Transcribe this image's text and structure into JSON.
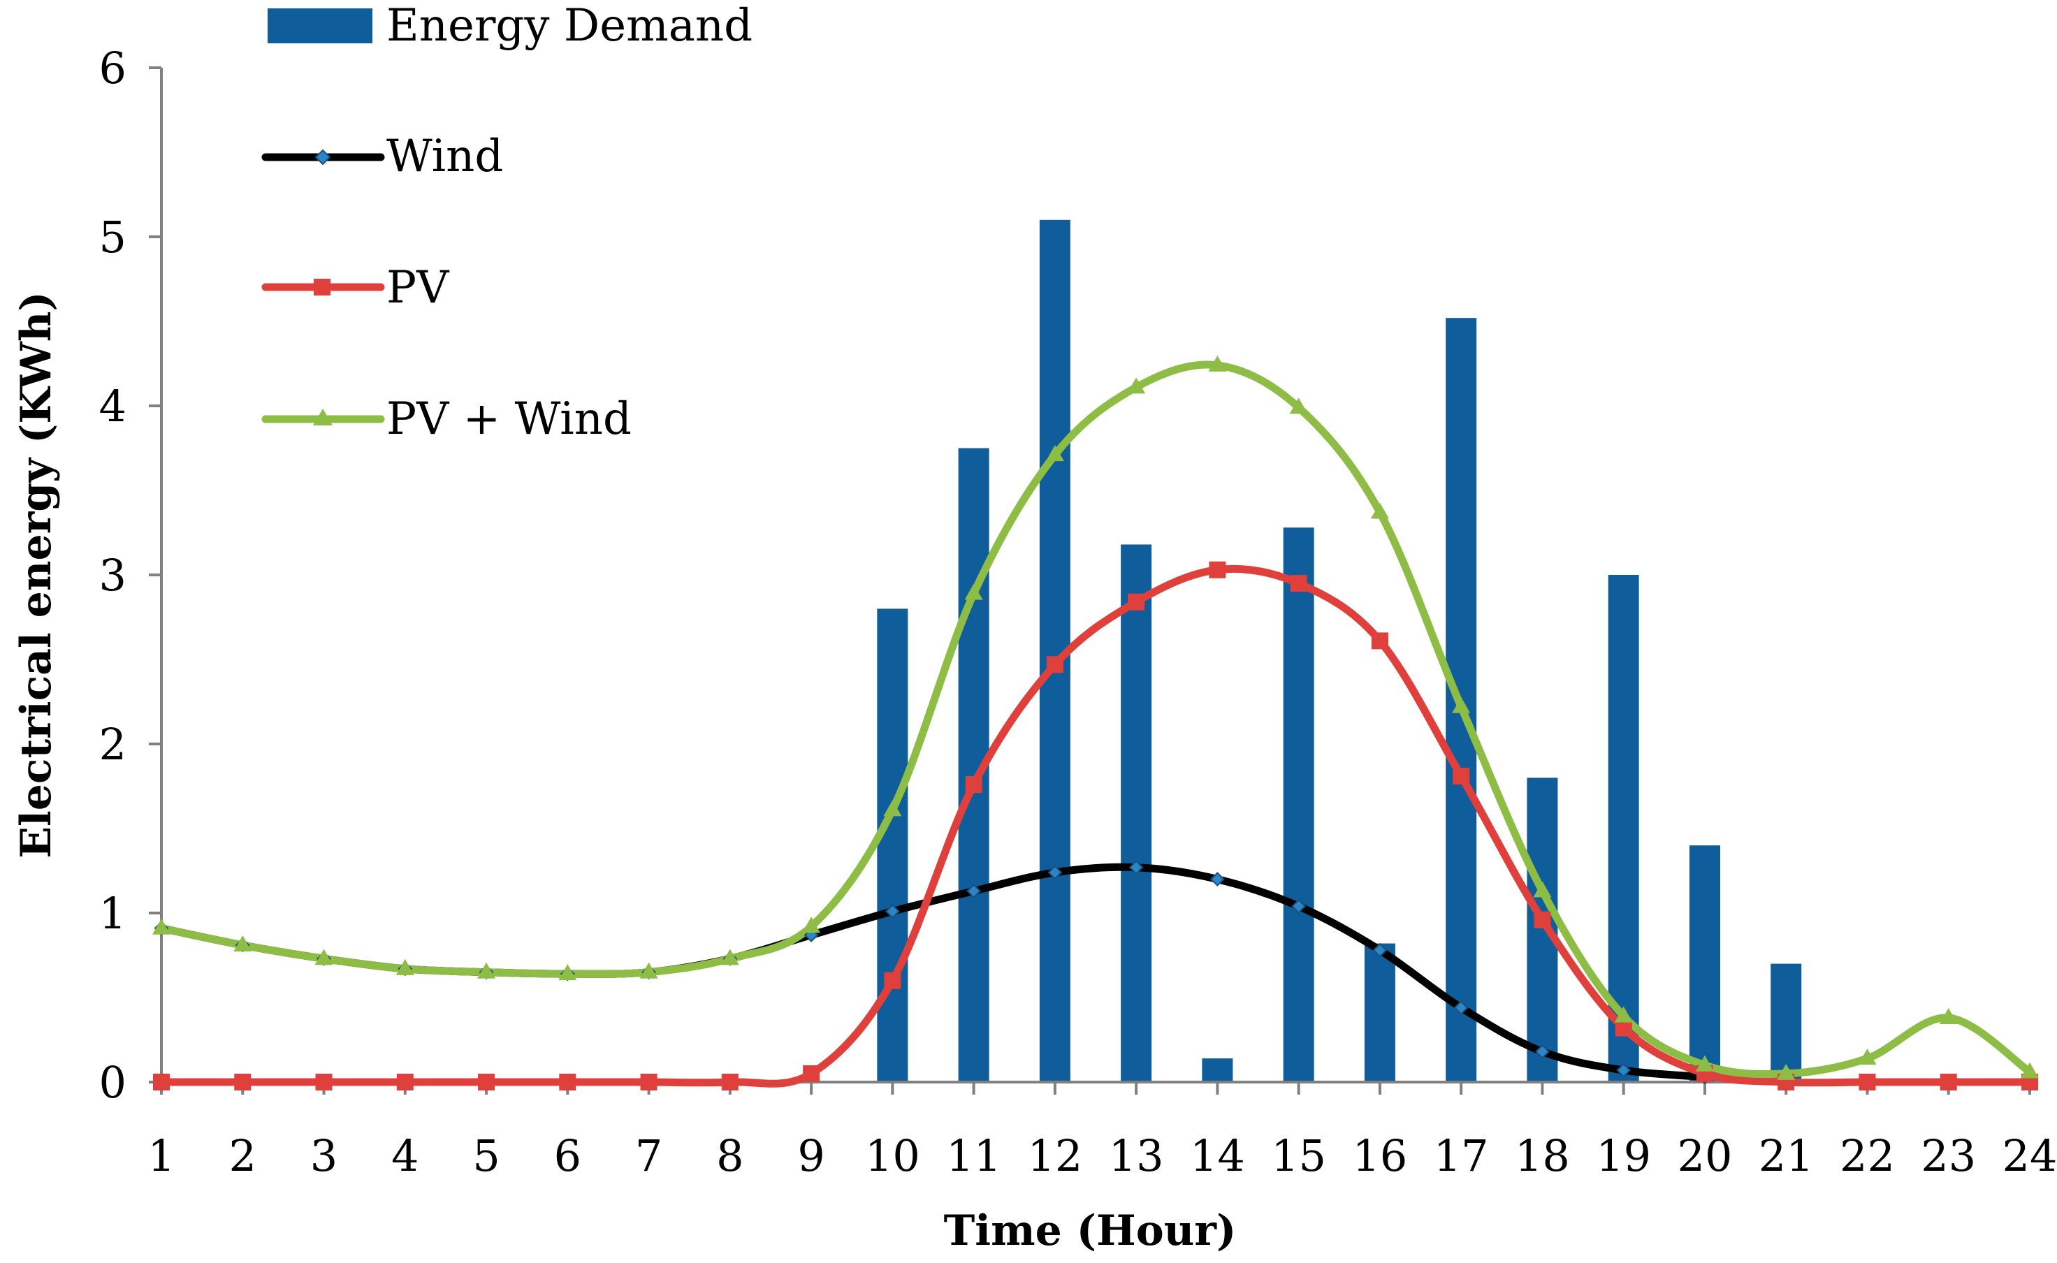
{
  "chart_data": {
    "type": "bar",
    "title": "",
    "xlabel": "Time (Hour)",
    "ylabel": "Electrical energy (KWh)",
    "ylim": [
      0,
      6
    ],
    "yticks": [
      "0",
      "1",
      "2",
      "3",
      "4",
      "5",
      "6"
    ],
    "categories": [
      "1",
      "2",
      "3",
      "4",
      "5",
      "6",
      "7",
      "8",
      "9",
      "10",
      "11",
      "12",
      "13",
      "14",
      "15",
      "16",
      "17",
      "18",
      "19",
      "20",
      "21",
      "22",
      "23",
      "24"
    ],
    "grid": false,
    "legend_position": "top-left",
    "series": [
      {
        "name": "Energy Demand",
        "type": "bar",
        "color": "#0f5d9a",
        "values": [
          0,
          0,
          0,
          0,
          0,
          0,
          0,
          0,
          0,
          2.8,
          3.75,
          5.1,
          3.18,
          0.14,
          3.28,
          0.82,
          4.52,
          1.8,
          3.0,
          1.4,
          0.7,
          0,
          0,
          0
        ]
      },
      {
        "name": "Wind",
        "type": "line",
        "color": "#000000",
        "marker": "diamond",
        "values": [
          0.91,
          0.81,
          0.73,
          0.67,
          0.65,
          0.64,
          0.65,
          0.73,
          0.87,
          1.01,
          1.13,
          1.24,
          1.27,
          1.2,
          1.04,
          0.78,
          0.44,
          0.18,
          0.07,
          0.03,
          null,
          null,
          null,
          null
        ]
      },
      {
        "name": "PV",
        "type": "line",
        "color": "#e0403c",
        "marker": "square",
        "values": [
          0,
          0,
          0,
          0,
          0,
          0,
          0,
          0,
          0.05,
          0.6,
          1.76,
          2.47,
          2.84,
          3.03,
          2.95,
          2.61,
          1.81,
          0.96,
          0.32,
          0.05,
          0,
          0,
          0,
          0
        ]
      },
      {
        "name": "PV + Wind",
        "type": "line",
        "color": "#8dbd45",
        "marker": "triangle",
        "values": [
          0.91,
          0.81,
          0.73,
          0.67,
          0.65,
          0.64,
          0.65,
          0.73,
          0.92,
          1.61,
          2.89,
          3.71,
          4.11,
          4.24,
          3.99,
          3.37,
          2.22,
          1.13,
          0.39,
          0.1,
          0.05,
          0.14,
          0.38,
          0.06
        ]
      }
    ]
  }
}
